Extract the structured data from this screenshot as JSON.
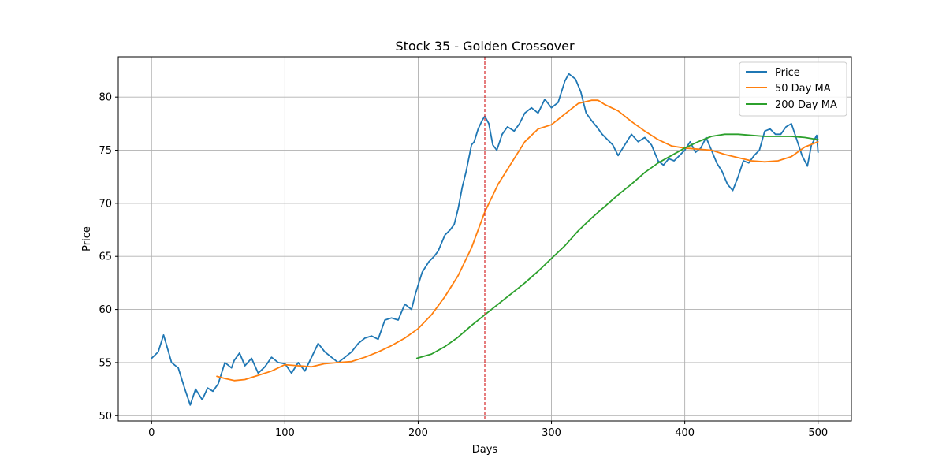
{
  "chart_data": {
    "type": "line",
    "title": "Stock 35 - Golden Crossover",
    "xlabel": "Days",
    "ylabel": "Price",
    "xlim": [
      -25,
      525
    ],
    "ylim": [
      49.5,
      83.8
    ],
    "x_ticks": [
      0,
      100,
      200,
      300,
      400,
      500
    ],
    "y_ticks": [
      50,
      55,
      60,
      65,
      70,
      75,
      80
    ],
    "grid": true,
    "legend_position": "upper-right",
    "series": [
      {
        "name": "Price",
        "color": "#1f77b4",
        "points": [
          [
            0,
            55.4
          ],
          [
            5,
            56.0
          ],
          [
            9,
            57.6
          ],
          [
            12,
            56.3
          ],
          [
            15,
            55.0
          ],
          [
            20,
            54.5
          ],
          [
            25,
            52.5
          ],
          [
            29,
            51.0
          ],
          [
            33,
            52.5
          ],
          [
            38,
            51.5
          ],
          [
            42,
            52.6
          ],
          [
            46,
            52.3
          ],
          [
            50,
            53.0
          ],
          [
            55,
            55.0
          ],
          [
            60,
            54.5
          ],
          [
            62,
            55.2
          ],
          [
            66,
            55.9
          ],
          [
            70,
            54.7
          ],
          [
            75,
            55.4
          ],
          [
            80,
            54.0
          ],
          [
            85,
            54.6
          ],
          [
            90,
            55.5
          ],
          [
            95,
            55.0
          ],
          [
            100,
            54.9
          ],
          [
            105,
            54.0
          ],
          [
            110,
            55.0
          ],
          [
            115,
            54.2
          ],
          [
            120,
            55.5
          ],
          [
            125,
            56.8
          ],
          [
            130,
            56.0
          ],
          [
            135,
            55.5
          ],
          [
            140,
            55.0
          ],
          [
            145,
            55.5
          ],
          [
            150,
            56.0
          ],
          [
            155,
            56.8
          ],
          [
            160,
            57.3
          ],
          [
            165,
            57.5
          ],
          [
            170,
            57.2
          ],
          [
            175,
            59.0
          ],
          [
            180,
            59.2
          ],
          [
            185,
            59.0
          ],
          [
            190,
            60.5
          ],
          [
            195,
            60.0
          ],
          [
            198,
            61.5
          ],
          [
            203,
            63.5
          ],
          [
            208,
            64.5
          ],
          [
            212,
            65.0
          ],
          [
            215,
            65.5
          ],
          [
            220,
            67.0
          ],
          [
            224,
            67.5
          ],
          [
            227,
            68.0
          ],
          [
            230,
            69.5
          ],
          [
            233,
            71.5
          ],
          [
            236,
            73.0
          ],
          [
            240,
            75.5
          ],
          [
            242,
            75.8
          ],
          [
            245,
            77.0
          ],
          [
            248,
            77.8
          ],
          [
            250,
            78.2
          ],
          [
            253,
            77.5
          ],
          [
            256,
            75.5
          ],
          [
            259,
            75.0
          ],
          [
            263,
            76.5
          ],
          [
            267,
            77.2
          ],
          [
            272,
            76.8
          ],
          [
            276,
            77.5
          ],
          [
            280,
            78.5
          ],
          [
            285,
            79.0
          ],
          [
            290,
            78.5
          ],
          [
            295,
            79.8
          ],
          [
            300,
            79.0
          ],
          [
            305,
            79.5
          ],
          [
            310,
            81.5
          ],
          [
            313,
            82.2
          ],
          [
            318,
            81.7
          ],
          [
            322,
            80.5
          ],
          [
            326,
            78.5
          ],
          [
            330,
            77.8
          ],
          [
            334,
            77.2
          ],
          [
            338,
            76.5
          ],
          [
            342,
            76.0
          ],
          [
            346,
            75.5
          ],
          [
            350,
            74.5
          ],
          [
            355,
            75.5
          ],
          [
            360,
            76.5
          ],
          [
            365,
            75.8
          ],
          [
            370,
            76.2
          ],
          [
            375,
            75.5
          ],
          [
            380,
            74.0
          ],
          [
            384,
            73.6
          ],
          [
            388,
            74.2
          ],
          [
            392,
            74.0
          ],
          [
            396,
            74.5
          ],
          [
            400,
            75.0
          ],
          [
            404,
            75.8
          ],
          [
            408,
            74.8
          ],
          [
            412,
            75.2
          ],
          [
            416,
            76.2
          ],
          [
            420,
            75.0
          ],
          [
            424,
            73.8
          ],
          [
            428,
            73.0
          ],
          [
            432,
            71.8
          ],
          [
            436,
            71.2
          ],
          [
            440,
            72.5
          ],
          [
            444,
            74.0
          ],
          [
            448,
            73.8
          ],
          [
            452,
            74.5
          ],
          [
            456,
            75.0
          ],
          [
            460,
            76.8
          ],
          [
            464,
            77.0
          ],
          [
            468,
            76.5
          ],
          [
            472,
            76.5
          ],
          [
            476,
            77.2
          ],
          [
            480,
            77.5
          ],
          [
            484,
            76.0
          ],
          [
            488,
            74.5
          ],
          [
            492,
            73.5
          ],
          [
            495,
            75.5
          ],
          [
            499,
            76.4
          ],
          [
            500,
            74.8
          ]
        ]
      },
      {
        "name": "50 Day MA",
        "color": "#ff7f0e",
        "points": [
          [
            49,
            53.7
          ],
          [
            55,
            53.5
          ],
          [
            62,
            53.3
          ],
          [
            70,
            53.4
          ],
          [
            80,
            53.8
          ],
          [
            90,
            54.2
          ],
          [
            100,
            54.8
          ],
          [
            110,
            54.7
          ],
          [
            120,
            54.6
          ],
          [
            130,
            54.9
          ],
          [
            140,
            55.0
          ],
          [
            150,
            55.1
          ],
          [
            160,
            55.5
          ],
          [
            170,
            56.0
          ],
          [
            180,
            56.6
          ],
          [
            190,
            57.3
          ],
          [
            200,
            58.2
          ],
          [
            210,
            59.5
          ],
          [
            220,
            61.2
          ],
          [
            230,
            63.2
          ],
          [
            240,
            65.8
          ],
          [
            250,
            69.2
          ],
          [
            260,
            71.8
          ],
          [
            270,
            73.8
          ],
          [
            280,
            75.8
          ],
          [
            290,
            77.0
          ],
          [
            300,
            77.4
          ],
          [
            310,
            78.4
          ],
          [
            320,
            79.4
          ],
          [
            330,
            79.7
          ],
          [
            335,
            79.7
          ],
          [
            340,
            79.3
          ],
          [
            350,
            78.7
          ],
          [
            360,
            77.7
          ],
          [
            370,
            76.8
          ],
          [
            380,
            76.0
          ],
          [
            390,
            75.4
          ],
          [
            400,
            75.2
          ],
          [
            410,
            75.1
          ],
          [
            420,
            75.0
          ],
          [
            430,
            74.6
          ],
          [
            440,
            74.3
          ],
          [
            450,
            74.0
          ],
          [
            460,
            73.9
          ],
          [
            470,
            74.0
          ],
          [
            480,
            74.4
          ],
          [
            490,
            75.3
          ],
          [
            500,
            75.8
          ]
        ]
      },
      {
        "name": "200 Day MA",
        "color": "#2ca02c",
        "points": [
          [
            199,
            55.4
          ],
          [
            210,
            55.8
          ],
          [
            220,
            56.5
          ],
          [
            230,
            57.4
          ],
          [
            240,
            58.5
          ],
          [
            250,
            59.5
          ],
          [
            260,
            60.5
          ],
          [
            270,
            61.5
          ],
          [
            280,
            62.5
          ],
          [
            290,
            63.6
          ],
          [
            300,
            64.8
          ],
          [
            310,
            66.0
          ],
          [
            320,
            67.4
          ],
          [
            330,
            68.6
          ],
          [
            340,
            69.7
          ],
          [
            350,
            70.8
          ],
          [
            360,
            71.8
          ],
          [
            370,
            72.9
          ],
          [
            380,
            73.8
          ],
          [
            390,
            74.5
          ],
          [
            400,
            75.2
          ],
          [
            410,
            75.8
          ],
          [
            420,
            76.3
          ],
          [
            430,
            76.5
          ],
          [
            440,
            76.5
          ],
          [
            450,
            76.4
          ],
          [
            460,
            76.3
          ],
          [
            470,
            76.3
          ],
          [
            480,
            76.3
          ],
          [
            490,
            76.2
          ],
          [
            500,
            76.0
          ]
        ]
      }
    ],
    "annotations": [
      {
        "type": "vertical-line",
        "x": 250,
        "color": "#d62728",
        "style": "dashed"
      }
    ]
  }
}
